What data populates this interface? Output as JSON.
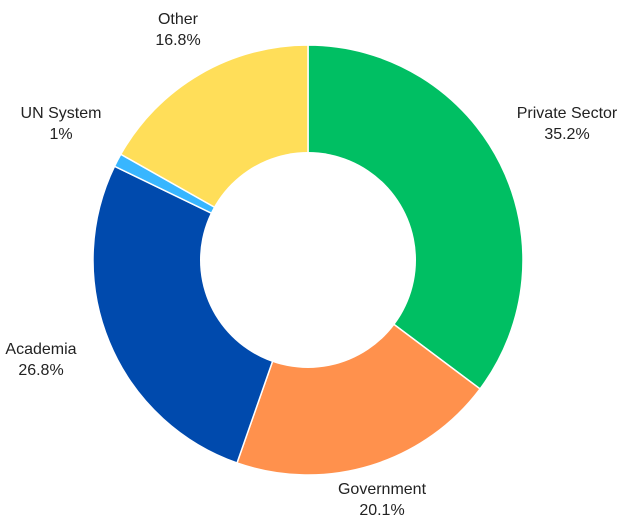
{
  "chart_data": {
    "type": "pie",
    "variant": "donut",
    "title": "",
    "start_angle_deg": 0,
    "direction": "clockwise",
    "slices": [
      {
        "label": "Private Sector",
        "value": 35.2,
        "value_label": "35.2%",
        "color": "#00BF63"
      },
      {
        "label": "Government",
        "value": 20.1,
        "value_label": "20.1%",
        "color": "#FF914D"
      },
      {
        "label": "Academia",
        "value": 26.8,
        "value_label": "26.8%",
        "color": "#004AAD"
      },
      {
        "label": "UN System",
        "value": 1,
        "value_label": "1%",
        "color": "#38B6FF"
      },
      {
        "label": "Other",
        "value": 16.8,
        "value_label": "16.8%",
        "color": "#FFDE59"
      }
    ]
  }
}
